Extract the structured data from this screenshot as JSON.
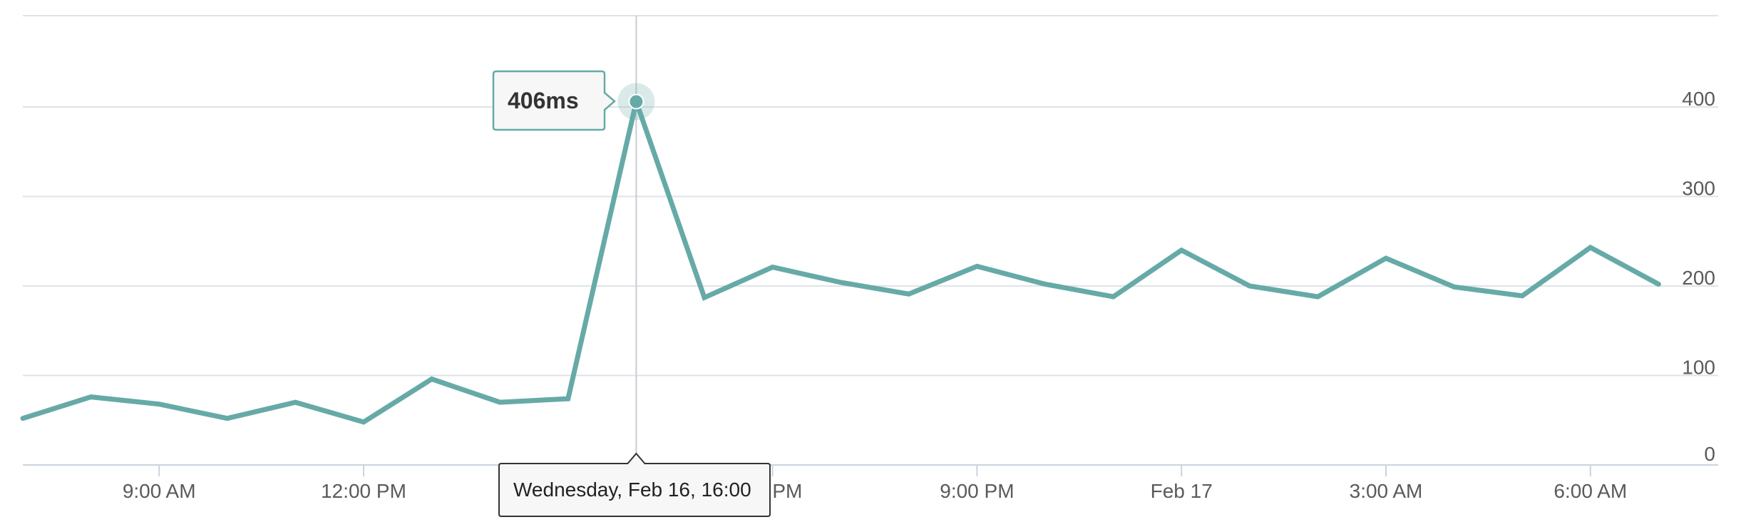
{
  "chart_data": {
    "type": "line",
    "title": "",
    "xlabel": "",
    "ylabel": "",
    "unit": "ms",
    "ylim": [
      0,
      500
    ],
    "yticks": [
      0,
      100,
      200,
      300,
      400
    ],
    "ytick_labels": [
      "0",
      "100",
      "200",
      "300",
      "400"
    ],
    "xtick_labels": [
      "9:00 AM",
      "12:00 PM",
      "",
      "9:00 PM",
      "Feb 17",
      "3:00 AM",
      "6:00 AM"
    ],
    "xtick_partial": "0 PM",
    "grid": true,
    "y_axis_position": "right",
    "series": [
      {
        "color": "#66aaa7",
        "x": [
          "2022-02-16 07:00",
          "2022-02-16 08:00",
          "2022-02-16 09:00",
          "2022-02-16 10:00",
          "2022-02-16 11:00",
          "2022-02-16 12:00",
          "2022-02-16 13:00",
          "2022-02-16 14:00",
          "2022-02-16 15:00",
          "2022-02-16 16:00",
          "2022-02-16 17:00",
          "2022-02-16 18:00",
          "2022-02-16 19:00",
          "2022-02-16 20:00",
          "2022-02-16 21:00",
          "2022-02-16 22:00",
          "2022-02-16 23:00",
          "2022-02-17 00:00",
          "2022-02-17 01:00",
          "2022-02-17 02:00",
          "2022-02-17 03:00",
          "2022-02-17 04:00",
          "2022-02-17 05:00",
          "2022-02-17 06:00",
          "2022-02-17 07:00"
        ],
        "values": [
          52,
          76,
          68,
          52,
          70,
          48,
          96,
          70,
          74,
          406,
          187,
          221,
          204,
          191,
          222,
          202,
          188,
          240,
          200,
          188,
          231,
          199,
          189,
          243,
          202
        ]
      }
    ],
    "tooltip": {
      "value_label": "406ms",
      "date_label": "Wednesday, Feb 16, 16:00"
    }
  }
}
